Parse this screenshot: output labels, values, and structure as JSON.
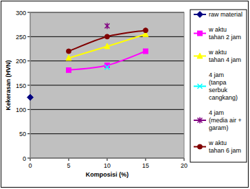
{
  "chart_data": {
    "type": "line",
    "x_label": "Komposisi (%)",
    "y_label": "Kekerasan (HVN)",
    "xlim": [
      0,
      20
    ],
    "xticks": [
      0,
      5,
      10,
      15,
      20
    ],
    "ylim": [
      0,
      300
    ],
    "yticks": [
      0,
      50,
      100,
      150,
      200,
      250,
      300
    ],
    "grid": true,
    "legend": "right",
    "series": [
      {
        "name": "raw  material",
        "color": "#000080",
        "marker": "diamond",
        "line_style": "smooth",
        "x": [
          0
        ],
        "values": [
          125
        ]
      },
      {
        "name": "w aktu tahan 2 jam",
        "color": "#ff00ff",
        "marker": "square",
        "line_style": "smooth",
        "x": [
          5,
          10,
          15
        ],
        "values": [
          181,
          191,
          220
        ]
      },
      {
        "name": "w aktu tahan 4 jam",
        "color": "#ffff00",
        "marker": "triangle",
        "line_style": "smooth",
        "x": [
          5,
          10,
          15
        ],
        "values": [
          206,
          230,
          255
        ]
      },
      {
        "name": "4 jam (tanpa serbuk cangkang)",
        "color": "#00ffff",
        "marker": "x",
        "line_style": "smooth",
        "x": [
          10
        ],
        "values": [
          187
        ]
      },
      {
        "name": "4 jam (media air + garam)",
        "color": "#800080",
        "marker": "star",
        "line_style": "smooth",
        "x": [
          10
        ],
        "values": [
          272
        ]
      },
      {
        "name": "w aktu tahan 6 jam",
        "color": "#800000",
        "marker": "circle",
        "line_style": "smooth",
        "x": [
          5,
          10,
          15
        ],
        "values": [
          220,
          250,
          263
        ]
      }
    ]
  }
}
